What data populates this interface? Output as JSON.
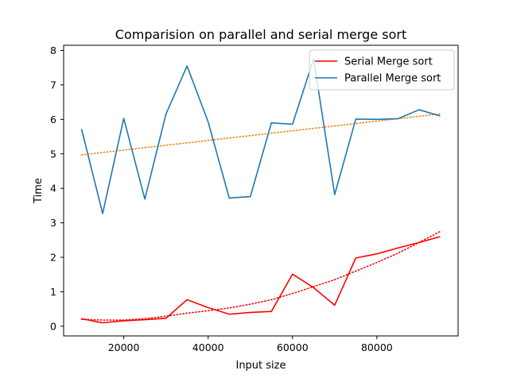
{
  "chart_data": {
    "type": "line",
    "title": "Comparision on parallel and serial merge sort",
    "xlabel": "Input size",
    "ylabel": "Time",
    "xlim": [
      5750,
      99250
    ],
    "ylim": [
      -0.28,
      8.15
    ],
    "xticks": [
      20000,
      40000,
      60000,
      80000
    ],
    "yticks": [
      0,
      1,
      2,
      3,
      4,
      5,
      6,
      7,
      8
    ],
    "grid": false,
    "legend": {
      "placement": "top-right"
    },
    "x": [
      10000,
      15000,
      20000,
      25000,
      30000,
      35000,
      40000,
      45000,
      50000,
      55000,
      60000,
      65000,
      70000,
      75000,
      80000,
      85000,
      90000,
      95000
    ],
    "series": [
      {
        "name": "Serial Merge sort",
        "color": "#ff0000",
        "style": "solid",
        "values": [
          0.22,
          0.1,
          0.16,
          0.19,
          0.23,
          0.77,
          0.54,
          0.35,
          0.4,
          0.43,
          1.51,
          1.12,
          0.61,
          1.98,
          2.1,
          2.27,
          2.43,
          2.6
        ]
      },
      {
        "name": "Parallel Merge sort",
        "color": "#1f77b4",
        "style": "solid",
        "values": [
          5.72,
          3.27,
          6.03,
          3.69,
          6.15,
          7.55,
          5.93,
          3.72,
          3.76,
          5.9,
          5.86,
          7.75,
          3.82,
          6.01,
          6.0,
          6.02,
          6.28,
          6.1
        ]
      },
      {
        "color": "#ff0000",
        "style": "dotted",
        "trend": "quadratic",
        "values": [
          0.2,
          0.18,
          0.18,
          0.22,
          0.29,
          0.38,
          0.45,
          0.53,
          0.64,
          0.77,
          0.95,
          1.15,
          1.35,
          1.6,
          1.85,
          2.12,
          2.43,
          2.75
        ]
      },
      {
        "color": "#ff7f0e",
        "style": "dotted",
        "trend": "linear",
        "values": [
          4.97,
          5.04,
          5.11,
          5.18,
          5.25,
          5.32,
          5.39,
          5.46,
          5.53,
          5.6,
          5.67,
          5.74,
          5.81,
          5.88,
          5.95,
          6.02,
          6.09,
          6.16
        ]
      }
    ]
  }
}
